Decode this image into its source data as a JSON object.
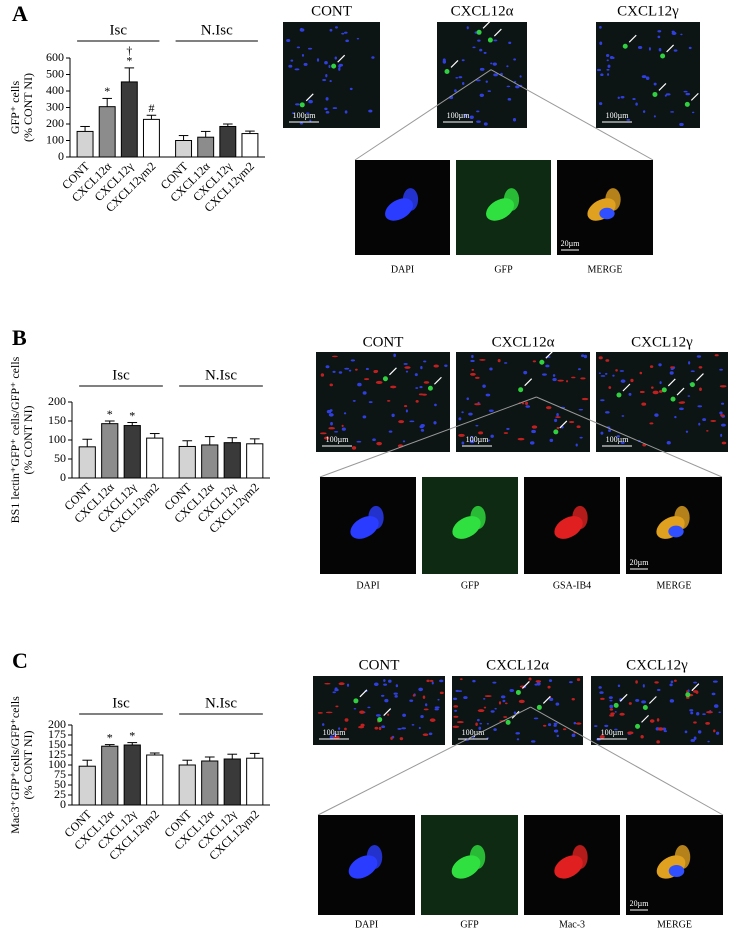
{
  "chart_data": [
    {
      "type": "bar",
      "panel": "A",
      "y_label": [
        "GFP⁺ cells",
        "(% CONT NI)"
      ],
      "group_labels": [
        "Isc",
        "N.Isc"
      ],
      "categories": [
        "CONT",
        "CXCL12α",
        "CXCL12γ",
        "CXCL12γm2",
        "CONT",
        "CXCL12α",
        "CXCL12γ",
        "CXCL12γm2"
      ],
      "values": [
        155,
        305,
        455,
        228,
        100,
        120,
        185,
        142
      ],
      "errors": [
        30,
        50,
        85,
        25,
        30,
        35,
        15,
        15
      ],
      "markers": [
        null,
        [
          "*"
        ],
        [
          "†",
          "*"
        ],
        [
          "#"
        ],
        null,
        null,
        null,
        null
      ],
      "colors": [
        "#d3d3d3",
        "#8c8c8c",
        "#3a3a3a",
        "#ffffff",
        "#d3d3d3",
        "#8c8c8c",
        "#3a3a3a",
        "#ffffff"
      ],
      "ylim": [
        0,
        600
      ],
      "yticks": [
        0,
        100,
        200,
        300,
        400,
        500,
        600
      ],
      "image_titles": [
        "CONT",
        "CXCL12α",
        "CXCL12γ"
      ],
      "scale_bars": [
        "100µm",
        "100µm",
        "100µm"
      ],
      "zoom_labels": [
        "DAPI",
        "GFP",
        "MERGE"
      ],
      "zoom_scale_bar": "20µm"
    },
    {
      "type": "bar",
      "panel": "B",
      "y_label": [
        "BS1 lectin⁺GFP⁺ cells/GFP⁺ cells",
        "(% CONT NI)"
      ],
      "group_labels": [
        "Isc",
        "N.Isc"
      ],
      "categories": [
        "CONT",
        "CXCL12α",
        "CXCL12γ",
        "CXCL12γm2",
        "CONT",
        "CXCL12α",
        "CXCL12γ",
        "CXCL12γm2"
      ],
      "values": [
        82,
        143,
        138,
        105,
        83,
        87,
        93,
        90
      ],
      "errors": [
        20,
        7,
        8,
        12,
        15,
        22,
        13,
        13
      ],
      "markers": [
        null,
        [
          "*"
        ],
        [
          "*"
        ],
        null,
        null,
        null,
        null,
        null
      ],
      "colors": [
        "#d3d3d3",
        "#8c8c8c",
        "#3a3a3a",
        "#ffffff",
        "#d3d3d3",
        "#8c8c8c",
        "#3a3a3a",
        "#ffffff"
      ],
      "ylim": [
        0,
        200
      ],
      "yticks": [
        0,
        50,
        100,
        150,
        200
      ],
      "image_titles": [
        "CONT",
        "CXCL12α",
        "CXCL12γ"
      ],
      "scale_bars": [
        "100µm",
        "100µm",
        "100µm"
      ],
      "zoom_labels": [
        "DAPI",
        "GFP",
        "GSA-IB4",
        "MERGE"
      ],
      "zoom_scale_bar": "20µm"
    },
    {
      "type": "bar",
      "panel": "C",
      "y_label": [
        "Mac3⁺GFP⁺cells/GFP⁺cells",
        "(% CONT NI)"
      ],
      "group_labels": [
        "Isc",
        "N.Isc"
      ],
      "categories": [
        "CONT",
        "CXCL12α",
        "CXCL12γ",
        "CXCL12γm2",
        "CONT",
        "CXCL12α",
        "CXCL12γ",
        "CXCL12γm2"
      ],
      "values": [
        97,
        147,
        150,
        125,
        100,
        110,
        115,
        117
      ],
      "errors": [
        15,
        4,
        6,
        5,
        12,
        10,
        12,
        12
      ],
      "markers": [
        null,
        [
          "*"
        ],
        [
          "*"
        ],
        null,
        null,
        null,
        null,
        null
      ],
      "colors": [
        "#d3d3d3",
        "#8c8c8c",
        "#3a3a3a",
        "#ffffff",
        "#d3d3d3",
        "#8c8c8c",
        "#3a3a3a",
        "#ffffff"
      ],
      "ylim": [
        0,
        200
      ],
      "yticks": [
        0,
        25,
        50,
        75,
        100,
        125,
        150,
        175,
        200
      ],
      "image_titles": [
        "CONT",
        "CXCL12α",
        "CXCL12γ"
      ],
      "scale_bars": [
        "100µm",
        "100µm",
        "100µm"
      ],
      "zoom_labels": [
        "DAPI",
        "GFP",
        "Mac-3",
        "MERGE"
      ],
      "zoom_scale_bar": "20µm"
    }
  ]
}
